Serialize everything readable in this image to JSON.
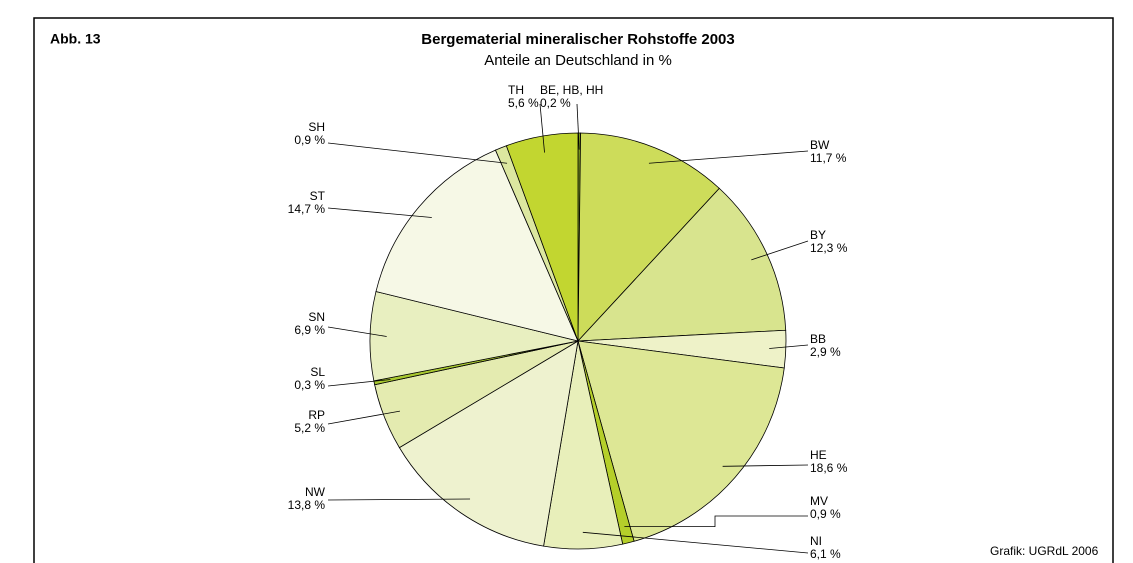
{
  "figure_label": "Abb. 13",
  "source": "Grafik: UGRdL 2006",
  "chart_data": {
    "type": "pie",
    "title": "Bergematerial mineralischer Rohstoffe 2003",
    "subtitle": "Anteile an Deutschland in %",
    "categories": [
      "BE, HB, HH",
      "BW",
      "BY",
      "BB",
      "HE",
      "MV",
      "NI",
      "NW",
      "RP",
      "SL",
      "SN",
      "ST",
      "SH",
      "TH"
    ],
    "values": [
      0.2,
      11.7,
      12.3,
      2.9,
      18.6,
      0.9,
      6.1,
      13.8,
      5.2,
      0.3,
      6.9,
      14.7,
      0.9,
      5.6
    ],
    "value_labels": [
      "0,2 %",
      "11,7 %",
      "12,3 %",
      "2,9 %",
      "18,6 %",
      "0,9 %",
      "6,1 %",
      "13,8 %",
      "5,2 %",
      "0,3 %",
      "6,9 %",
      "14,7 %",
      "0,9 %",
      "5,6 %"
    ],
    "colors": [
      "#7e9e1e",
      "#cddc5a",
      "#d8e48e",
      "#eef2c8",
      "#dde795",
      "#b5cf2a",
      "#e8efba",
      "#eef2cf",
      "#e4ebb0",
      "#a8c830",
      "#e8efc0",
      "#f6f8e6",
      "#dce7a0",
      "#c2d630"
    ]
  }
}
